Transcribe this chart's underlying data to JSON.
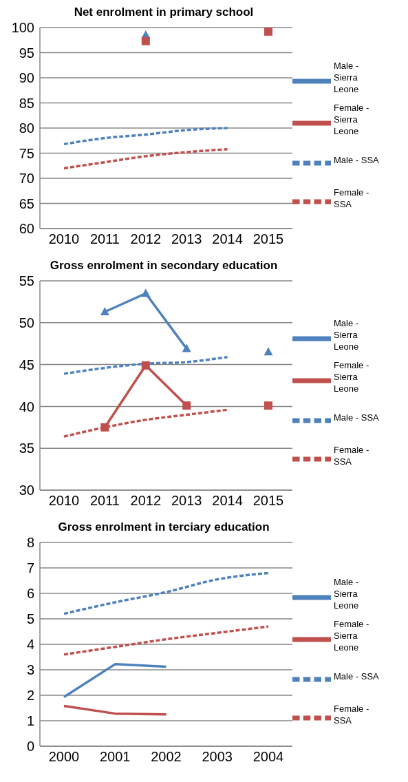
{
  "chart_data": [
    {
      "type": "line",
      "title": "Net enrolment in primary school",
      "categories": [
        "2010",
        "2011",
        "2012",
        "2013",
        "2014",
        "2015"
      ],
      "ylim": [
        60,
        100
      ],
      "yticks": [
        60,
        65,
        70,
        75,
        80,
        85,
        90,
        95,
        100
      ],
      "grid": "y",
      "legend": "right",
      "series": [
        {
          "name": "Male - Sierra Leone",
          "color": "#4f81bd",
          "marker": "triangle",
          "line_style": "solid",
          "values": [
            null,
            null,
            98.5,
            null,
            null,
            null
          ]
        },
        {
          "name": "Female - Sierra Leone",
          "color": "#c0504d",
          "marker": "square",
          "line_style": "solid",
          "values": [
            null,
            null,
            97.3,
            null,
            null,
            99.2
          ]
        },
        {
          "name": "Male - SSA",
          "color": "#4f81bd",
          "marker": "none",
          "line_style": "dashed",
          "values": [
            76.8,
            78,
            78.7,
            79.6,
            80,
            null
          ]
        },
        {
          "name": "Female - SSA",
          "color": "#c0504d",
          "marker": "none",
          "line_style": "dashed",
          "values": [
            72,
            73.2,
            74.4,
            75.2,
            75.8,
            null
          ]
        }
      ]
    },
    {
      "type": "line",
      "title": "Gross enrolment in secondary education",
      "categories": [
        "2010",
        "2011",
        "2012",
        "2013",
        "2014",
        "2015"
      ],
      "ylim": [
        30,
        55
      ],
      "yticks": [
        30,
        35,
        40,
        45,
        50,
        55
      ],
      "grid": "y",
      "legend": "right",
      "series": [
        {
          "name": "Male - Sierra Leone",
          "color": "#4f81bd",
          "marker": "triangle",
          "line_style": "solid",
          "values": [
            null,
            51.3,
            53.5,
            46.9,
            null,
            46.5
          ]
        },
        {
          "name": "Female - Sierra Leone",
          "color": "#c0504d",
          "marker": "square",
          "line_style": "solid",
          "values": [
            null,
            37.5,
            44.9,
            40.1,
            null,
            40.1
          ]
        },
        {
          "name": "Male - SSA",
          "color": "#4f81bd",
          "marker": "none",
          "line_style": "dashed",
          "values": [
            43.9,
            44.6,
            45.1,
            45.3,
            45.9,
            null
          ]
        },
        {
          "name": "Female - SSA",
          "color": "#c0504d",
          "marker": "none",
          "line_style": "dashed",
          "values": [
            36.4,
            37.5,
            38.4,
            39,
            39.6,
            null
          ]
        }
      ]
    },
    {
      "type": "line",
      "title": "Gross enrolment in terciary education",
      "categories": [
        "2000",
        "2001",
        "2002",
        "2003",
        "2004"
      ],
      "ylim": [
        0,
        8
      ],
      "yticks": [
        0,
        1,
        2,
        3,
        4,
        5,
        6,
        7,
        8
      ],
      "grid": "y",
      "legend": "right",
      "series": [
        {
          "name": "Male - Sierra Leone",
          "color": "#4f81bd",
          "marker": "none",
          "line_style": "solid",
          "values": [
            1.93,
            3.22,
            3.12,
            null,
            null
          ]
        },
        {
          "name": "Female - Sierra Leone",
          "color": "#c0504d",
          "marker": "none",
          "line_style": "solid",
          "values": [
            1.58,
            1.28,
            1.25,
            null,
            null
          ]
        },
        {
          "name": "Male - SSA",
          "color": "#4f81bd",
          "marker": "none",
          "line_style": "dashed",
          "values": [
            5.2,
            5.65,
            6.05,
            6.55,
            6.8
          ]
        },
        {
          "name": "Female - SSA",
          "color": "#c0504d",
          "marker": "none",
          "line_style": "dashed",
          "values": [
            3.6,
            3.9,
            4.2,
            4.45,
            4.7
          ]
        }
      ]
    }
  ]
}
